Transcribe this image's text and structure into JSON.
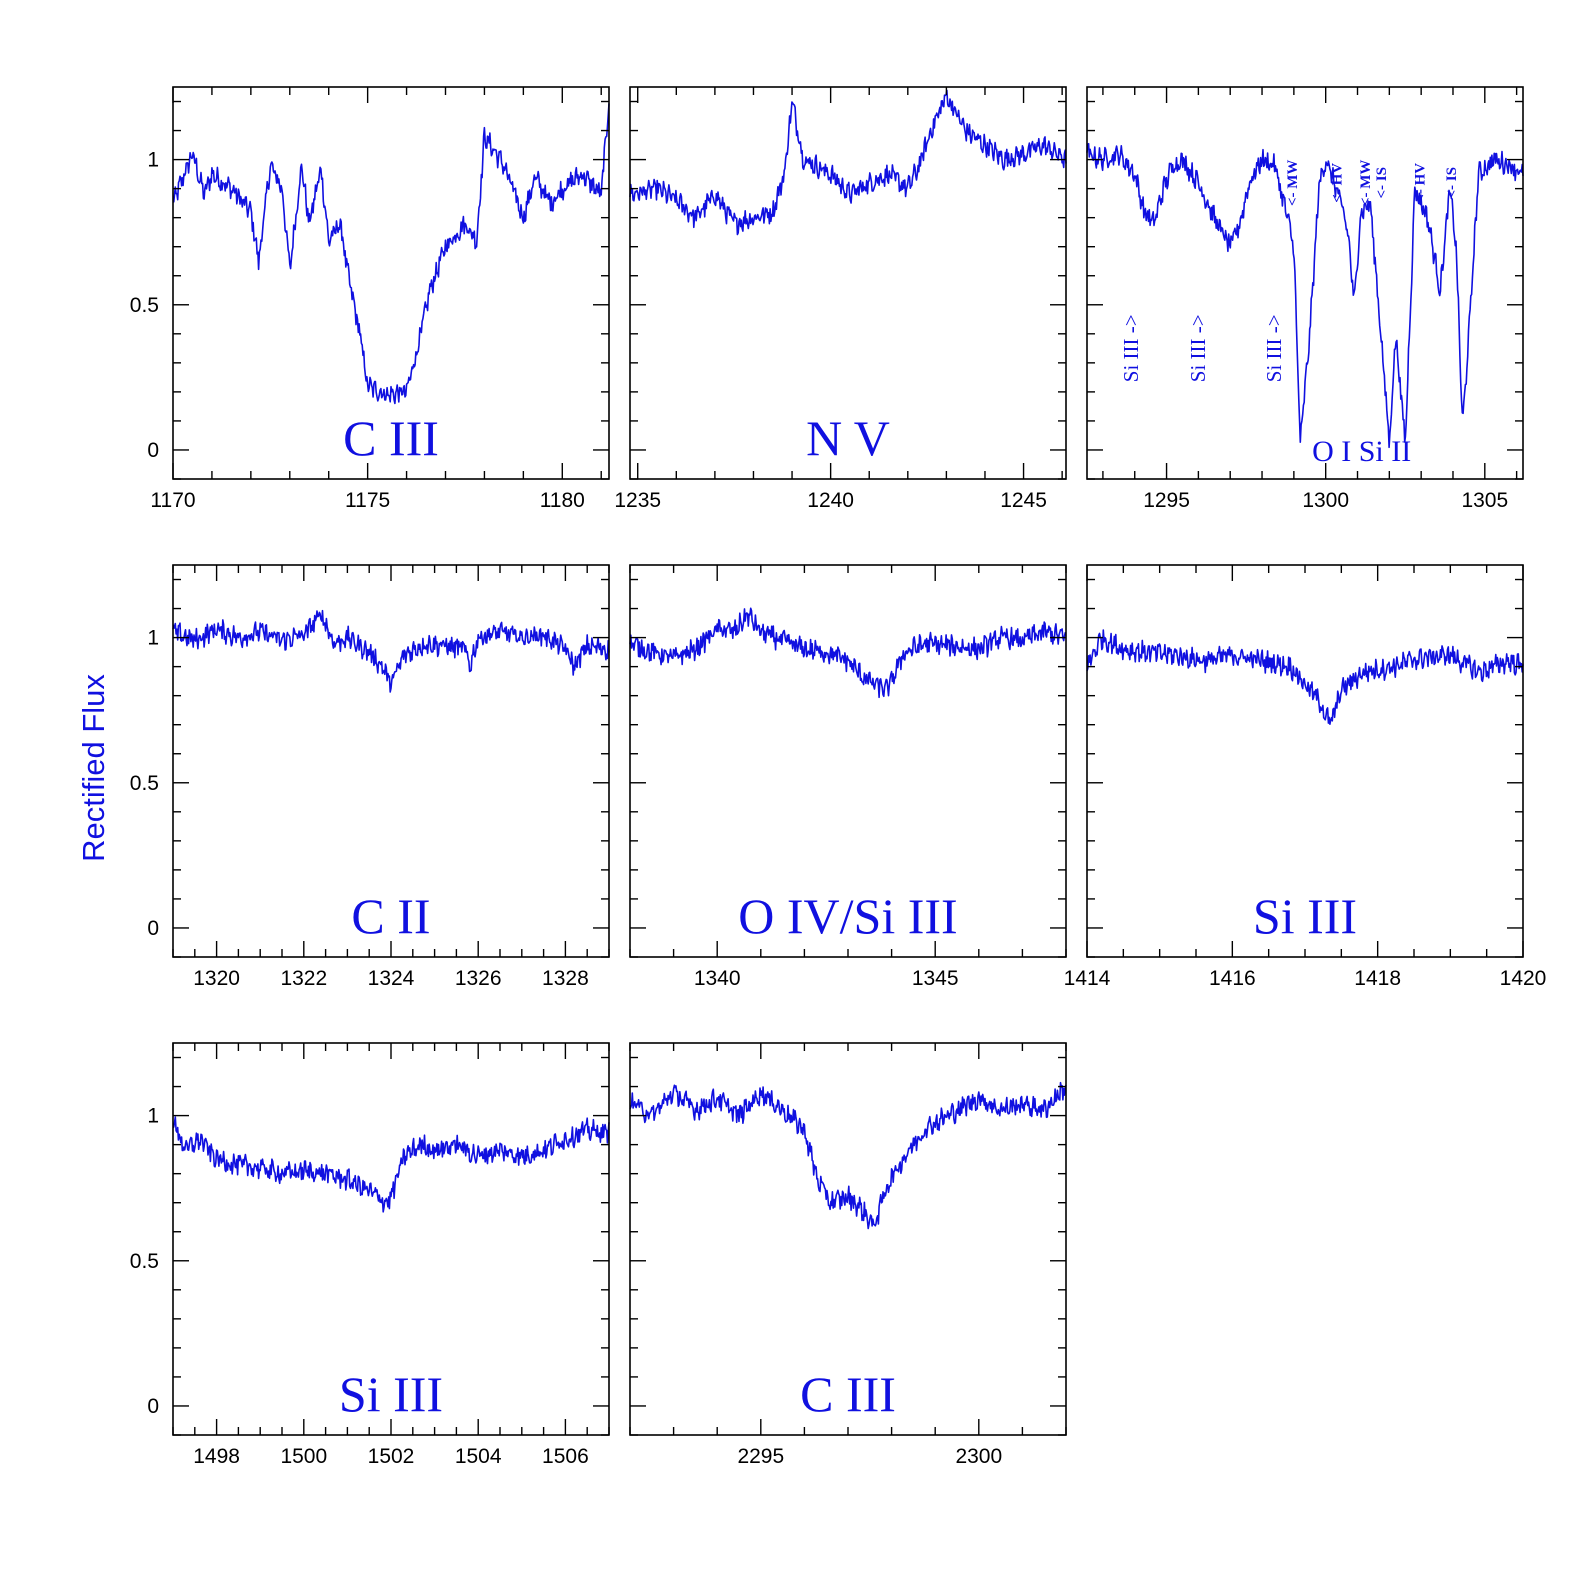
{
  "colors": {
    "spectrum": "#1010e0",
    "labels": "#1010e0",
    "axes": "#000000"
  },
  "figure": {
    "ylabel": "Rectified Flux"
  },
  "chart_data": [
    {
      "type": "line",
      "label": "C III",
      "xlim": [
        1170,
        1181.2
      ],
      "ylim": [
        -0.1,
        1.25
      ],
      "xticks": [
        1170,
        1175,
        1180
      ],
      "xminor": 1,
      "yticks": [
        0,
        0.5,
        1
      ],
      "yminor": 0.1,
      "series": [
        {
          "x": [
            1170,
            1170.5,
            1170.8,
            1171,
            1171.5,
            1172,
            1172.2,
            1172.5,
            1172.8,
            1173,
            1173.3,
            1173.5,
            1173.8,
            1174,
            1174.3,
            1174.5,
            1174.8,
            1175,
            1175.5,
            1176,
            1176.3,
            1176.6,
            1177,
            1177.5,
            1177.8,
            1178,
            1178.5,
            1179,
            1179.3,
            1179.7,
            1180,
            1180.5,
            1181,
            1181.2
          ],
          "y": [
            0.85,
            1.02,
            0.88,
            0.95,
            0.9,
            0.82,
            0.65,
            0.98,
            0.9,
            0.62,
            0.98,
            0.78,
            0.97,
            0.72,
            0.78,
            0.6,
            0.4,
            0.22,
            0.19,
            0.2,
            0.36,
            0.55,
            0.7,
            0.78,
            0.72,
            1.08,
            0.98,
            0.8,
            0.94,
            0.85,
            0.9,
            0.95,
            0.88,
            1.2
          ]
        }
      ],
      "annotations": []
    },
    {
      "type": "line",
      "label": "N V",
      "xlim": [
        1234.8,
        1246.1
      ],
      "ylim": [
        -0.1,
        1.25
      ],
      "xticks": [
        1235,
        1240,
        1245
      ],
      "xminor": 1,
      "yticks": [
        0,
        0.5,
        1
      ],
      "yminor": 0.1,
      "series": [
        {
          "x": [
            1234.8,
            1235.5,
            1236,
            1236.5,
            1237,
            1237.5,
            1238,
            1238.5,
            1238.8,
            1239,
            1239.3,
            1239.6,
            1240,
            1240.5,
            1241,
            1241.5,
            1242,
            1242.3,
            1242.6,
            1243,
            1243.5,
            1244,
            1244.5,
            1245,
            1245.5,
            1246.1
          ],
          "y": [
            0.88,
            0.9,
            0.86,
            0.8,
            0.88,
            0.78,
            0.8,
            0.82,
            0.95,
            1.2,
            1.0,
            0.98,
            0.95,
            0.88,
            0.92,
            0.95,
            0.9,
            0.98,
            1.1,
            1.22,
            1.1,
            1.05,
            1.0,
            1.02,
            1.05,
            1.0
          ]
        }
      ],
      "annotations": []
    },
    {
      "type": "line",
      "label": "O I Si II",
      "xlim": [
        1292.5,
        1306.2
      ],
      "ylim": [
        -0.1,
        1.25
      ],
      "xticks": [
        1295,
        1300,
        1305
      ],
      "xminor": 1,
      "yticks": [
        0,
        0.5,
        1
      ],
      "yminor": 0.1,
      "series": [
        {
          "x": [
            1292.5,
            1293,
            1293.5,
            1294,
            1294.3,
            1294.6,
            1294.9,
            1295.2,
            1295.5,
            1296,
            1296.5,
            1297,
            1297.3,
            1297.6,
            1298,
            1298.4,
            1298.8,
            1299,
            1299.2,
            1299.5,
            1299.8,
            1300,
            1300.4,
            1300.7,
            1300.9,
            1301.1,
            1301.4,
            1301.7,
            1302,
            1302.2,
            1302.5,
            1302.8,
            1303.2,
            1303.6,
            1303.9,
            1304.1,
            1304.3,
            1304.5,
            1304.8,
            1305.3,
            1305.8,
            1306.2
          ],
          "y": [
            1.02,
            1.0,
            1.02,
            0.95,
            0.82,
            0.78,
            0.9,
            0.98,
            1.0,
            0.92,
            0.8,
            0.7,
            0.78,
            0.92,
            1.0,
            0.98,
            0.8,
            0.7,
            0.02,
            0.4,
            0.92,
            1.0,
            0.88,
            0.75,
            0.5,
            0.82,
            0.85,
            0.45,
            0.02,
            0.4,
            0.02,
            0.9,
            0.8,
            0.55,
            0.9,
            0.7,
            0.08,
            0.4,
            0.95,
            1.0,
            0.98,
            0.95
          ]
        }
      ],
      "annotations": [
        {
          "text": "Si III ->",
          "x": 1294.1,
          "y": 0.35,
          "orient": "v"
        },
        {
          "text": "Si III ->",
          "x": 1296.2,
          "y": 0.35,
          "orient": "v"
        },
        {
          "text": "Si III ->",
          "x": 1298.6,
          "y": 0.35,
          "orient": "v"
        },
        {
          "text": "<- MW",
          "x": 1299.1,
          "y": 0.92,
          "orient": "small"
        },
        {
          "text": "<- HV",
          "x": 1300.5,
          "y": 0.92,
          "orient": "small"
        },
        {
          "text": "<- MW",
          "x": 1301.4,
          "y": 0.92,
          "orient": "small"
        },
        {
          "text": "<- IS",
          "x": 1301.9,
          "y": 0.92,
          "orient": "small"
        },
        {
          "text": "<- HV",
          "x": 1303.1,
          "y": 0.92,
          "orient": "small"
        },
        {
          "text": "<- IS",
          "x": 1304.1,
          "y": 0.92,
          "orient": "small"
        }
      ]
    },
    {
      "type": "line",
      "label": "C II",
      "xlim": [
        1319,
        1329
      ],
      "ylim": [
        -0.1,
        1.25
      ],
      "xticks": [
        1320,
        1322,
        1324,
        1326,
        1328
      ],
      "xminor": 0.5,
      "yticks": [
        0,
        0.5,
        1
      ],
      "yminor": 0.1,
      "series": [
        {
          "x": [
            1319,
            1319.5,
            1320,
            1320.5,
            1321,
            1321.5,
            1322,
            1322.4,
            1322.7,
            1323,
            1323.5,
            1323.8,
            1324,
            1324.3,
            1324.8,
            1325.3,
            1325.7,
            1325.8,
            1326,
            1326.5,
            1327,
            1327.5,
            1328,
            1328.2,
            1328.5,
            1329
          ],
          "y": [
            1.02,
            0.99,
            1.03,
            1.0,
            1.02,
            0.99,
            1.01,
            1.08,
            0.98,
            1.0,
            0.95,
            0.9,
            0.84,
            0.94,
            0.98,
            0.97,
            0.96,
            0.9,
            1.0,
            1.02,
            1.0,
            1.01,
            0.96,
            0.9,
            0.97,
            0.96
          ]
        }
      ],
      "annotations": []
    },
    {
      "type": "line",
      "label": "O IV/Si III",
      "xlim": [
        1338,
        1348
      ],
      "ylim": [
        -0.1,
        1.25
      ],
      "xticks": [
        1340,
        1345
      ],
      "xminor": 1,
      "yticks": [
        0,
        0.5,
        1
      ],
      "yminor": 0.1,
      "series": [
        {
          "x": [
            1338,
            1338.5,
            1339,
            1339.5,
            1340,
            1340.4,
            1340.7,
            1341,
            1341.5,
            1342,
            1342.5,
            1343,
            1343.3,
            1343.6,
            1343.9,
            1344.3,
            1344.8,
            1345.5,
            1346,
            1346.5,
            1347,
            1347.5,
            1348
          ],
          "y": [
            0.98,
            0.95,
            0.93,
            0.96,
            1.03,
            1.02,
            1.08,
            1.02,
            0.99,
            0.96,
            0.95,
            0.92,
            0.87,
            0.84,
            0.82,
            0.95,
            0.98,
            0.97,
            0.96,
            1.0,
            0.99,
            1.02,
            1.0
          ]
        }
      ],
      "annotations": []
    },
    {
      "type": "line",
      "label": "Si III",
      "xlim": [
        1414,
        1420
      ],
      "ylim": [
        -0.1,
        1.25
      ],
      "xticks": [
        1414,
        1416,
        1418,
        1420
      ],
      "xminor": 0.5,
      "yticks": [
        0,
        0.5,
        1
      ],
      "yminor": 0.1,
      "series": [
        {
          "x": [
            1414,
            1414.2,
            1414.5,
            1414.8,
            1415.2,
            1415.6,
            1416,
            1416.4,
            1416.8,
            1417,
            1417.2,
            1417.35,
            1417.5,
            1417.8,
            1418.2,
            1418.6,
            1419,
            1419.4,
            1419.8,
            1420
          ],
          "y": [
            0.9,
            1.0,
            0.96,
            0.95,
            0.94,
            0.92,
            0.94,
            0.92,
            0.9,
            0.84,
            0.78,
            0.7,
            0.82,
            0.88,
            0.9,
            0.93,
            0.94,
            0.88,
            0.92,
            0.9
          ]
        }
      ],
      "annotations": []
    },
    {
      "type": "line",
      "label": "Si III",
      "xlim": [
        1497,
        1507
      ],
      "ylim": [
        -0.1,
        1.25
      ],
      "xticks": [
        1498,
        1500,
        1502,
        1504,
        1506
      ],
      "xminor": 0.5,
      "yticks": [
        0,
        0.5,
        1
      ],
      "yminor": 0.1,
      "series": [
        {
          "x": [
            1497,
            1497.3,
            1497.6,
            1498,
            1498.5,
            1499,
            1499.5,
            1500,
            1500.5,
            1501,
            1501.5,
            1501.9,
            1502,
            1502.3,
            1502.7,
            1503,
            1503.5,
            1504,
            1504.5,
            1505,
            1505.5,
            1506,
            1506.5,
            1507
          ],
          "y": [
            0.98,
            0.88,
            0.92,
            0.85,
            0.83,
            0.82,
            0.8,
            0.81,
            0.8,
            0.78,
            0.74,
            0.7,
            0.72,
            0.86,
            0.9,
            0.88,
            0.9,
            0.86,
            0.88,
            0.86,
            0.88,
            0.92,
            0.95,
            0.94
          ]
        }
      ],
      "annotations": []
    },
    {
      "type": "line",
      "label": "C III",
      "xlim": [
        2292,
        2302
      ],
      "ylim": [
        -0.1,
        1.25
      ],
      "xticks": [
        2295,
        2300
      ],
      "xminor": 1,
      "yticks": [
        0,
        0.5,
        1
      ],
      "yminor": 0.1,
      "series": [
        {
          "x": [
            2292,
            2292.5,
            2293,
            2293.5,
            2294,
            2294.5,
            2295,
            2295.5,
            2296,
            2296.3,
            2296.6,
            2297,
            2297.3,
            2297.6,
            2297.9,
            2298.3,
            2298.8,
            2299.3,
            2300,
            2300.5,
            2301,
            2301.5,
            2302
          ],
          "y": [
            1.05,
            1.0,
            1.08,
            1.02,
            1.06,
            1.0,
            1.08,
            1.02,
            0.95,
            0.78,
            0.7,
            0.72,
            0.68,
            0.62,
            0.76,
            0.86,
            0.96,
            1.0,
            1.06,
            1.02,
            1.04,
            1.02,
            1.1
          ]
        }
      ],
      "annotations": []
    }
  ]
}
